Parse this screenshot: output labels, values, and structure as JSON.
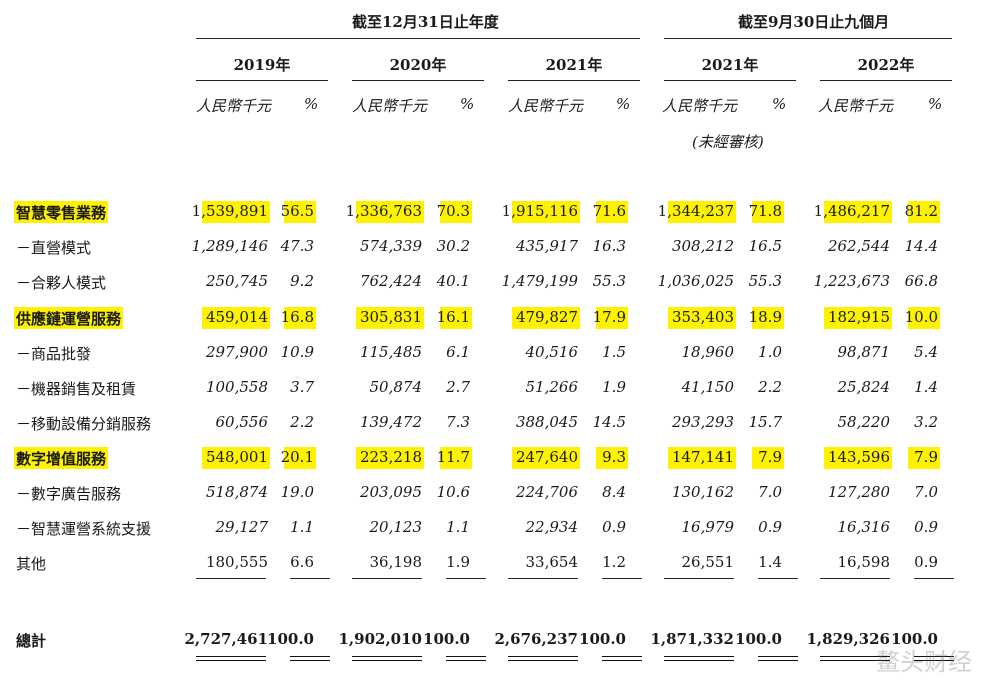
{
  "header": {
    "group_fy": "截至12月31日止年度",
    "group_9m": "截至9月30日止九個月",
    "years": [
      "2019年",
      "2020年",
      "2021年",
      "2021年",
      "2022年"
    ],
    "unit": "人民幣千元",
    "pct": "%",
    "unaudited": "(未經審核)"
  },
  "rows": [
    {
      "label": "智慧零售業務",
      "bold": true,
      "hl": true,
      "values": [
        "1,539,891",
        "56.5",
        "1,336,763",
        "70.3",
        "1,915,116",
        "71.6",
        "1,344,237",
        "71.8",
        "1,486,217",
        "81.2"
      ]
    },
    {
      "label": "－直營模式",
      "values": [
        "1,289,146",
        "47.3",
        "574,339",
        "30.2",
        "435,917",
        "16.3",
        "308,212",
        "16.5",
        "262,544",
        "14.4"
      ]
    },
    {
      "label": "－合夥人模式",
      "values": [
        "250,745",
        "9.2",
        "762,424",
        "40.1",
        "1,479,199",
        "55.3",
        "1,036,025",
        "55.3",
        "1,223,673",
        "66.8"
      ]
    },
    {
      "label": "供應鏈運營服務",
      "bold": true,
      "hl": true,
      "values": [
        "459,014",
        "16.8",
        "305,831",
        "16.1",
        "479,827",
        "17.9",
        "353,403",
        "18.9",
        "182,915",
        "10.0"
      ]
    },
    {
      "label": "－商品批發",
      "values": [
        "297,900",
        "10.9",
        "115,485",
        "6.1",
        "40,516",
        "1.5",
        "18,960",
        "1.0",
        "98,871",
        "5.4"
      ]
    },
    {
      "label": "－機器銷售及租賃",
      "values": [
        "100,558",
        "3.7",
        "50,874",
        "2.7",
        "51,266",
        "1.9",
        "41,150",
        "2.2",
        "25,824",
        "1.4"
      ]
    },
    {
      "label": "－移動設備分銷服務",
      "values": [
        "60,556",
        "2.2",
        "139,472",
        "7.3",
        "388,045",
        "14.5",
        "293,293",
        "15.7",
        "58,220",
        "3.2"
      ]
    },
    {
      "label": "數字增值服務",
      "bold": true,
      "hl": true,
      "values": [
        "548,001",
        "20.1",
        "223,218",
        "11.7",
        "247,640",
        "9.3",
        "147,141",
        "7.9",
        "143,596",
        "7.9"
      ]
    },
    {
      "label": "－數字廣告服務",
      "values": [
        "518,874",
        "19.0",
        "203,095",
        "10.6",
        "224,706",
        "8.4",
        "130,162",
        "7.0",
        "127,280",
        "7.0"
      ]
    },
    {
      "label": "－智慧運營系統支援",
      "values": [
        "29,127",
        "1.1",
        "20,123",
        "1.1",
        "22,934",
        "0.9",
        "16,979",
        "0.9",
        "16,316",
        "0.9"
      ]
    },
    {
      "label": "其他",
      "plain": true,
      "values": [
        "180,555",
        "6.6",
        "36,198",
        "1.9",
        "33,654",
        "1.2",
        "26,551",
        "1.4",
        "16,598",
        "0.9"
      ]
    }
  ],
  "total": {
    "label": "總計",
    "values": [
      "2,727,461",
      "100.0",
      "1,902,010",
      "100.0",
      "2,676,237",
      "100.0",
      "1,871,332",
      "100.0",
      "1,829,326",
      "100.0"
    ]
  },
  "watermark": "鳌头财经"
}
